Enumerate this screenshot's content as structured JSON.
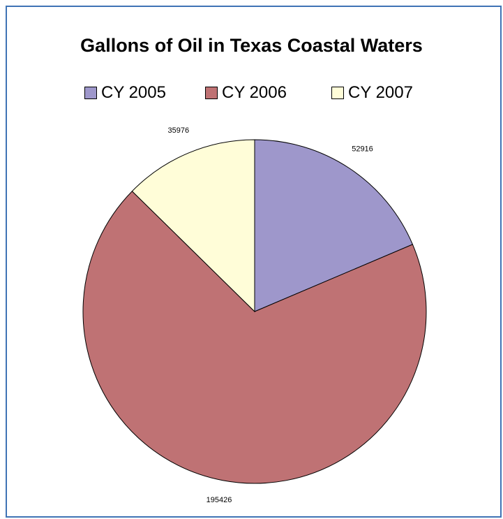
{
  "chart_data": {
    "type": "pie",
    "title": "Gallons of Oil in Texas Coastal Waters",
    "legend_placement": "top",
    "slices": [
      {
        "label": "CY 2005",
        "value": 52916,
        "data_label": "52916",
        "color": "#9e97cb"
      },
      {
        "label": "CY 2006",
        "value": 195426,
        "data_label": "195426",
        "color": "#bf7274"
      },
      {
        "label": "CY 2007",
        "value": 35976,
        "data_label": "35976",
        "color": "#fffdd8"
      }
    ],
    "start_angle": "12 o'clock",
    "direction": "clockwise",
    "outline_color": "#000000"
  }
}
